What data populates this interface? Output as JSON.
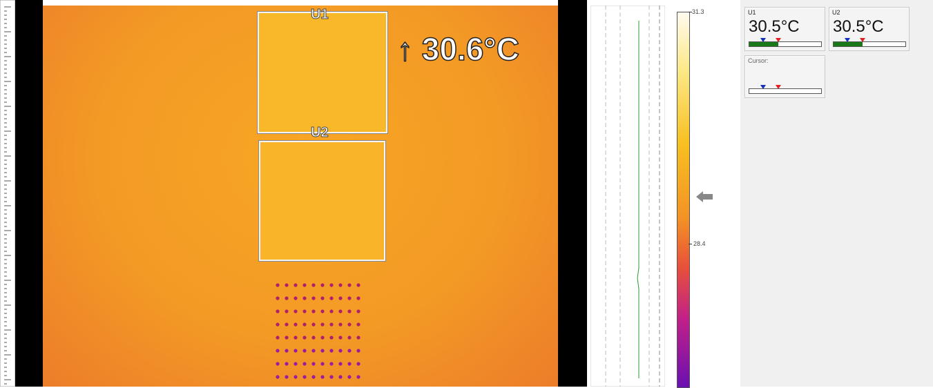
{
  "image": {
    "regions": [
      {
        "label": "U1"
      },
      {
        "label": "U2"
      }
    ],
    "max_readout": "↑ 30.6°C"
  },
  "scale": {
    "max": "31.3",
    "mid": "28.4"
  },
  "panels": [
    {
      "label": "U1",
      "value": "30.5°C"
    },
    {
      "label": "U2",
      "value": "30.5°C"
    },
    {
      "label": "Cursor:"
    }
  ]
}
